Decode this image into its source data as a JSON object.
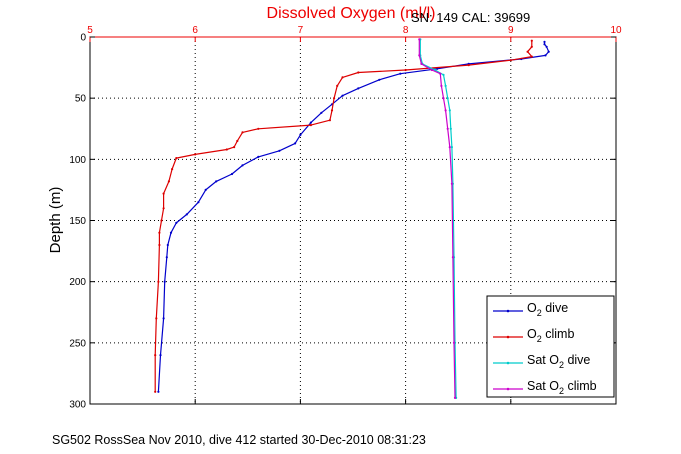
{
  "chart_data": {
    "type": "line",
    "title": "Dissolved Oxygen (ml/l)",
    "ylabel": "Depth (m)",
    "xlim": [
      5,
      10
    ],
    "ylim": [
      0,
      300
    ],
    "y_reversed": true,
    "x_axis_position": "top",
    "x_ticks": [
      "5",
      "6",
      "7",
      "8",
      "9",
      "10"
    ],
    "y_ticks": [
      "0",
      "50",
      "100",
      "150",
      "200",
      "250",
      "300"
    ],
    "grid": true,
    "grid_style": "dotted",
    "legend_position": "bottom-right",
    "series": [
      {
        "name": "O2 dive",
        "legend": {
          "pre": "O",
          "sub": "2",
          "post": " dive"
        },
        "color": "#0000cc",
        "points": [
          [
            9.32,
            4
          ],
          [
            9.32,
            6
          ],
          [
            9.34,
            8
          ],
          [
            9.36,
            12
          ],
          [
            9.33,
            15
          ],
          [
            9.1,
            18
          ],
          [
            8.6,
            22
          ],
          [
            8.3,
            26
          ],
          [
            7.95,
            30
          ],
          [
            7.75,
            35
          ],
          [
            7.55,
            42
          ],
          [
            7.4,
            48
          ],
          [
            7.3,
            55
          ],
          [
            7.2,
            62
          ],
          [
            7.1,
            70
          ],
          [
            7.0,
            80
          ],
          [
            6.95,
            87
          ],
          [
            6.8,
            93
          ],
          [
            6.6,
            98
          ],
          [
            6.45,
            105
          ],
          [
            6.35,
            112
          ],
          [
            6.2,
            118
          ],
          [
            6.1,
            125
          ],
          [
            6.03,
            135
          ],
          [
            5.92,
            145
          ],
          [
            5.82,
            152
          ],
          [
            5.77,
            160
          ],
          [
            5.74,
            170
          ],
          [
            5.73,
            180
          ],
          [
            5.71,
            200
          ],
          [
            5.7,
            230
          ],
          [
            5.67,
            260
          ],
          [
            5.65,
            290
          ]
        ]
      },
      {
        "name": "O2 climb",
        "legend": {
          "pre": "O",
          "sub": "2",
          "post": " climb"
        },
        "color": "#dd0000",
        "points": [
          [
            9.2,
            3
          ],
          [
            9.2,
            8
          ],
          [
            9.16,
            12
          ],
          [
            9.2,
            16
          ],
          [
            9.0,
            19
          ],
          [
            8.6,
            23
          ],
          [
            8.0,
            27
          ],
          [
            7.55,
            29
          ],
          [
            7.4,
            33
          ],
          [
            7.35,
            40
          ],
          [
            7.32,
            50
          ],
          [
            7.3,
            60
          ],
          [
            7.28,
            68
          ],
          [
            7.1,
            72
          ],
          [
            6.6,
            75
          ],
          [
            6.45,
            78
          ],
          [
            6.4,
            85
          ],
          [
            6.37,
            90
          ],
          [
            6.3,
            92
          ],
          [
            6.0,
            96
          ],
          [
            5.82,
            99
          ],
          [
            5.78,
            108
          ],
          [
            5.75,
            118
          ],
          [
            5.7,
            128
          ],
          [
            5.7,
            140
          ],
          [
            5.68,
            150
          ],
          [
            5.66,
            160
          ],
          [
            5.66,
            170
          ],
          [
            5.65,
            200
          ],
          [
            5.63,
            230
          ],
          [
            5.62,
            260
          ],
          [
            5.62,
            290
          ]
        ]
      },
      {
        "name": "Sat O2 dive",
        "legend": {
          "pre": "Sat O",
          "sub": "2",
          "post": " dive"
        },
        "color": "#00cccc",
        "points": [
          [
            8.14,
            2
          ],
          [
            8.14,
            15
          ],
          [
            8.16,
            22
          ],
          [
            8.28,
            27
          ],
          [
            8.36,
            31
          ],
          [
            8.38,
            40
          ],
          [
            8.4,
            50
          ],
          [
            8.42,
            60
          ],
          [
            8.43,
            75
          ],
          [
            8.44,
            90
          ],
          [
            8.45,
            120
          ],
          [
            8.46,
            180
          ],
          [
            8.47,
            250
          ],
          [
            8.48,
            295
          ]
        ]
      },
      {
        "name": "Sat O2 climb",
        "legend": {
          "pre": "Sat O",
          "sub": "2",
          "post": " climb"
        },
        "color": "#cc00cc",
        "points": [
          [
            8.13,
            2
          ],
          [
            8.13,
            15
          ],
          [
            8.15,
            22
          ],
          [
            8.25,
            27
          ],
          [
            8.33,
            30
          ],
          [
            8.34,
            40
          ],
          [
            8.36,
            50
          ],
          [
            8.38,
            60
          ],
          [
            8.4,
            75
          ],
          [
            8.42,
            90
          ],
          [
            8.44,
            120
          ],
          [
            8.45,
            180
          ],
          [
            8.46,
            250
          ],
          [
            8.47,
            295
          ]
        ]
      }
    ]
  },
  "info_label": "SN: 149  CAL: 39699",
  "footer": "SG502 RossSea Nov 2010, dive 412 started 30-Dec-2010 08:31:23"
}
